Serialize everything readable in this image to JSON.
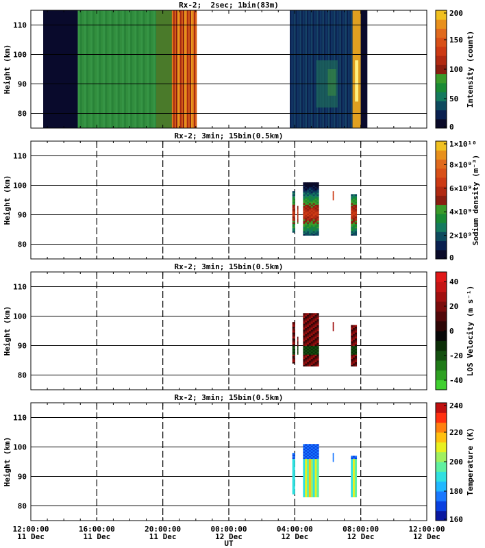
{
  "figure": {
    "x_axis_label": "UT",
    "x_tick_labels": [
      [
        "12:00:00",
        "11 Dec"
      ],
      [
        "16:00:00",
        "11 Dec"
      ],
      [
        "20:00:00",
        "11 Dec"
      ],
      [
        "00:00:00",
        "12 Dec"
      ],
      [
        "04:00:00",
        "12 Dec"
      ],
      [
        "08:00:00",
        "12 Dec"
      ],
      [
        "12:00:00",
        "12 Dec"
      ]
    ]
  },
  "chart_data": [
    {
      "type": "heatmap",
      "title": "Rx-2;  2sec; 1bin(83m)",
      "xlabel": "UT",
      "ylabel": "Height (km)",
      "xlim": [
        "11 Dec 12:00:00",
        "12 Dec 12:00:00"
      ],
      "ylim": [
        75,
        115
      ],
      "y_ticks": [
        80,
        90,
        100,
        110
      ],
      "grid": true,
      "colorbar": {
        "label": "Intensity (count)",
        "ticks": [
          "0",
          "50",
          "100",
          "150",
          "200"
        ],
        "range": [
          0,
          200
        ],
        "colors": [
          "#0a0a28",
          "#0a2050",
          "#0e4a5e",
          "#157a5e",
          "#1a8a35",
          "#3a9a2a",
          "#8a1e10",
          "#b02a12",
          "#cc3a14",
          "#d85018",
          "#e06a1e",
          "#e8901c",
          "#f0c020"
        ]
      },
      "data_segments": [
        {
          "start": "11 Dec 12:45",
          "end": "11 Dec 14:50",
          "intensity": "~0 (dark)"
        },
        {
          "start": "11 Dec 14:50",
          "end": "11 Dec 20:30",
          "intensity": "~60-75 (green)"
        },
        {
          "start": "11 Dec 20:30",
          "end": "11 Dec 22:00",
          "intensity": "~130-190 (orange/red)"
        },
        {
          "start": "12 Dec 03:40",
          "end": "12 Dec 08:00",
          "intensity": "~20-60 (dark blue), bright ~200 near 07:50"
        },
        {
          "start": "12 Dec 08:00",
          "end": "12 Dec 08:25",
          "intensity": "~0 (dark)"
        }
      ]
    },
    {
      "type": "heatmap",
      "title": "Rx-2; 3min; 15bin(0.5km)",
      "xlabel": "UT",
      "ylabel": "Height (km)",
      "ylim": [
        75,
        115
      ],
      "y_ticks": [
        80,
        90,
        100,
        110
      ],
      "grid": true,
      "colorbar": {
        "label": "Sodium density (m⁻³)",
        "ticks": [
          "0",
          "2×10⁹",
          "4×10⁹",
          "6×10⁹",
          "8×10⁹",
          "1×10¹⁰"
        ],
        "range": [
          0,
          10000000000
        ],
        "colors": [
          "#0a0a28",
          "#0a2050",
          "#0e4a5e",
          "#157a5e",
          "#1a8a35",
          "#3a9a2a",
          "#8a1e10",
          "#b02a12",
          "#cc3a14",
          "#d85018",
          "#e06a1e",
          "#e8901c",
          "#f0c020"
        ]
      },
      "data_segments": [
        {
          "start": "12 Dec 03:50",
          "end": "12 Dec 04:00",
          "height": [
            84,
            98
          ],
          "peak_density": 7000000000
        },
        {
          "start": "12 Dec 04:10",
          "end": "12 Dec 04:15",
          "height": [
            87,
            93
          ],
          "peak_density": 6000000000
        },
        {
          "start": "12 Dec 04:30",
          "end": "12 Dec 05:25",
          "height": [
            83,
            101
          ],
          "peak_density": 7000000000
        },
        {
          "start": "12 Dec 06:20",
          "end": "12 Dec 06:25",
          "height": [
            95,
            98
          ],
          "peak_density": 7000000000
        },
        {
          "start": "12 Dec 07:25",
          "end": "12 Dec 07:45",
          "height": [
            83,
            97
          ],
          "peak_density": 8000000000
        }
      ]
    },
    {
      "type": "heatmap",
      "title": "Rx-2; 3min; 15bin(0.5km)",
      "xlabel": "UT",
      "ylabel": "Height (km)",
      "ylim": [
        75,
        115
      ],
      "y_ticks": [
        80,
        90,
        100,
        110
      ],
      "grid": true,
      "colorbar": {
        "label": "LOS Velocity (m s⁻¹)",
        "ticks": [
          "40",
          "20",
          "0",
          "-20",
          "-40"
        ],
        "range": [
          -50,
          50
        ],
        "colors": [
          "#40d030",
          "#2ea022",
          "#1f7a18",
          "#145010",
          "#0c2e08",
          "#080808",
          "#2e0606",
          "#52080a",
          "#7a0c0c",
          "#a00f0f",
          "#c41414",
          "#e01818"
        ]
      },
      "data_segments": [
        {
          "start": "12 Dec 03:50",
          "end": "12 Dec 04:00",
          "height": [
            84,
            98
          ],
          "velocity": "~10 to 30"
        },
        {
          "start": "12 Dec 04:10",
          "end": "12 Dec 04:15",
          "height": [
            87,
            93
          ],
          "velocity": "~0"
        },
        {
          "start": "12 Dec 04:30",
          "end": "12 Dec 05:25",
          "height": [
            83,
            101
          ],
          "velocity": "~-10 to 30"
        },
        {
          "start": "12 Dec 06:20",
          "end": "12 Dec 06:25",
          "height": [
            95,
            98
          ],
          "velocity": "~40"
        },
        {
          "start": "12 Dec 07:25",
          "end": "12 Dec 07:45",
          "height": [
            83,
            97
          ],
          "velocity": "~10 to 30"
        }
      ]
    },
    {
      "type": "heatmap",
      "title": "Rx-2; 3min; 15bin(0.5km)",
      "xlabel": "UT",
      "ylabel": "Height (km)",
      "ylim": [
        75,
        115
      ],
      "y_ticks": [
        80,
        90,
        100,
        110
      ],
      "grid": true,
      "colorbar": {
        "label": "Temperature (K)",
        "ticks": [
          "160",
          "180",
          "200",
          "220",
          "240"
        ],
        "range": [
          150,
          250
        ],
        "colors": [
          "#0a18a0",
          "#0a40e0",
          "#1a78ff",
          "#20b8ff",
          "#30e0e0",
          "#60f0a0",
          "#a0f060",
          "#e8f020",
          "#ffc010",
          "#ff8010",
          "#ff3010",
          "#c01010"
        ]
      },
      "data_segments": [
        {
          "start": "12 Dec 03:50",
          "end": "12 Dec 04:00",
          "height": [
            84,
            98
          ],
          "temperature": "~190-210"
        },
        {
          "start": "12 Dec 04:30",
          "end": "12 Dec 05:25",
          "height": [
            83,
            101
          ],
          "temperature": "~175-215"
        },
        {
          "start": "12 Dec 06:20",
          "end": "12 Dec 06:25",
          "height": [
            95,
            98
          ],
          "temperature": "~170"
        },
        {
          "start": "12 Dec 07:25",
          "end": "12 Dec 07:45",
          "height": [
            83,
            97
          ],
          "temperature": "~185-200"
        }
      ]
    }
  ]
}
